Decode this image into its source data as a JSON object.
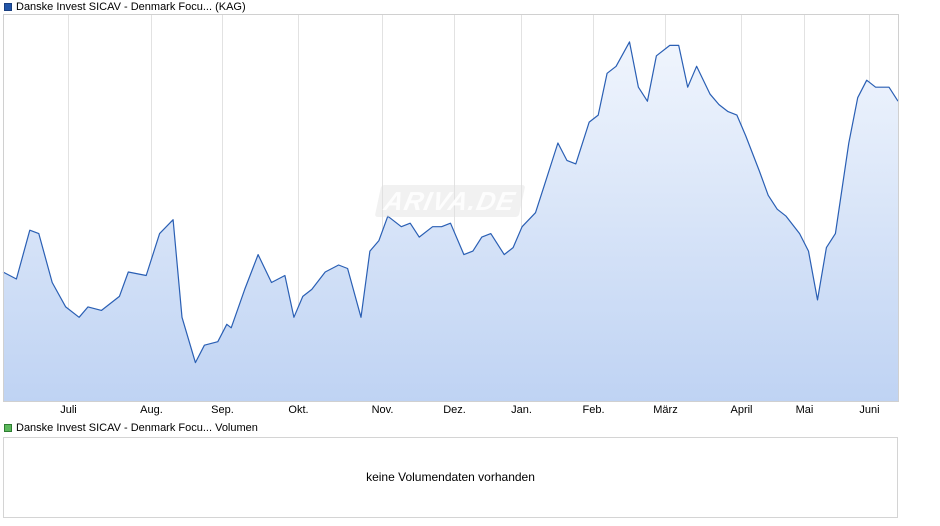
{
  "legend_price": {
    "label": "Danske Invest SICAV - Denmark Focu... (KAG)",
    "color": "#2255a8"
  },
  "legend_volume": {
    "label": "Danske Invest SICAV - Denmark Focu... Volumen",
    "color": "#5cb85c"
  },
  "watermark": {
    "text": "ARIVA.DE"
  },
  "volume_panel": {
    "message": "keine Volumendaten vorhanden"
  },
  "chart_data": {
    "type": "area",
    "y_ticks": [
      "2.500",
      "2.550",
      "2.600",
      "2.650",
      "2.700",
      "2.750",
      "2.800",
      "2.850",
      "2.900",
      "2.950",
      "3.000"
    ],
    "ylim": [
      2.48,
      3.035
    ],
    "x_ticks": [
      "Juli",
      "Aug.",
      "Sep.",
      "Okt.",
      "Nov.",
      "Dez.",
      "Jan.",
      "Feb.",
      "März",
      "April",
      "Mai",
      "Juni"
    ],
    "grid": true,
    "line_color": "#2a5fb4",
    "fill_top_color": "#f0f5fd",
    "fill_bottom_color": "#bfd3f3",
    "series": [
      {
        "x": [
          0.0,
          0.015,
          0.03,
          0.04,
          0.055,
          0.07,
          0.085,
          0.095,
          0.11,
          0.13,
          0.14,
          0.16,
          0.175,
          0.19,
          0.2,
          0.215,
          0.225,
          0.24,
          0.25,
          0.255,
          0.27,
          0.285,
          0.3,
          0.315,
          0.325,
          0.335,
          0.345,
          0.36,
          0.375,
          0.385,
          0.4,
          0.41,
          0.42,
          0.43,
          0.445,
          0.455,
          0.465,
          0.48,
          0.49,
          0.5,
          0.515,
          0.525,
          0.535,
          0.545,
          0.56,
          0.57,
          0.58,
          0.595,
          0.605,
          0.62,
          0.63,
          0.64,
          0.655,
          0.665,
          0.675,
          0.685,
          0.7,
          0.71,
          0.72,
          0.73,
          0.745,
          0.755,
          0.765,
          0.775,
          0.79,
          0.8,
          0.81,
          0.82,
          0.83,
          0.845,
          0.855,
          0.865,
          0.875,
          0.89,
          0.9,
          0.91,
          0.92,
          0.93,
          0.945,
          0.955,
          0.965,
          0.975,
          0.99,
          1.0
        ],
        "values": [
          2.665,
          2.655,
          2.725,
          2.72,
          2.65,
          2.615,
          2.6,
          2.615,
          2.61,
          2.63,
          2.665,
          2.66,
          2.72,
          2.74,
          2.6,
          2.535,
          2.56,
          2.565,
          2.59,
          2.585,
          2.64,
          2.69,
          2.65,
          2.66,
          2.6,
          2.63,
          2.64,
          2.665,
          2.675,
          2.67,
          2.6,
          2.695,
          2.71,
          2.745,
          2.73,
          2.735,
          2.715,
          2.73,
          2.73,
          2.735,
          2.69,
          2.695,
          2.715,
          2.72,
          2.69,
          2.7,
          2.73,
          2.75,
          2.79,
          2.85,
          2.825,
          2.82,
          2.88,
          2.89,
          2.95,
          2.96,
          2.995,
          2.93,
          2.91,
          2.975,
          2.99,
          2.99,
          2.93,
          2.96,
          2.92,
          2.905,
          2.895,
          2.89,
          2.86,
          2.81,
          2.775,
          2.755,
          2.745,
          2.72,
          2.695,
          2.625,
          2.7,
          2.72,
          2.85,
          2.915,
          2.94,
          2.93,
          2.93,
          2.91
        ]
      }
    ]
  }
}
